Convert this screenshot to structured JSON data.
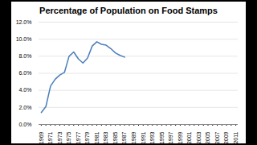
{
  "chart_data": {
    "type": "line",
    "title": "Percentage of Population on Food Stamps",
    "categories": [
      "1969",
      null,
      "1971",
      null,
      "1973",
      null,
      "1975",
      null,
      "1977",
      null,
      "1979",
      null,
      "1981",
      null,
      "1983",
      null,
      "1985",
      null,
      "1987",
      null,
      "1989",
      null,
      "1991",
      null,
      "1993",
      null,
      "1995",
      null,
      "1997",
      null,
      "1999",
      null,
      "2001",
      null,
      "2003",
      null,
      "2005",
      null,
      "2007",
      null,
      "2009",
      null,
      "2011"
    ],
    "values": [
      1.4,
      2.1,
      4.5,
      5.3,
      5.8,
      6.1,
      8.0,
      8.5,
      7.7,
      7.2,
      7.8,
      9.2,
      9.7,
      9.4,
      9.3,
      8.9,
      8.4,
      8.1,
      7.9,
      null,
      null,
      null,
      null,
      null,
      null,
      null,
      null,
      null,
      null,
      null,
      null,
      null,
      null,
      null,
      null,
      null,
      null,
      null,
      null,
      null,
      null,
      null,
      null
    ],
    "color": "#4a7ebb",
    "ylim": [
      0,
      12
    ],
    "yticks": [
      {
        "value": 0,
        "label": "0.0%"
      },
      {
        "value": 2,
        "label": "2.0%"
      },
      {
        "value": 4,
        "label": "4.0%"
      },
      {
        "value": 6,
        "label": "6.0%"
      },
      {
        "value": 8,
        "label": "8.0%"
      },
      {
        "value": 10,
        "label": "10.0%"
      },
      {
        "value": 12,
        "label": "12.0%"
      }
    ],
    "grid": true
  }
}
